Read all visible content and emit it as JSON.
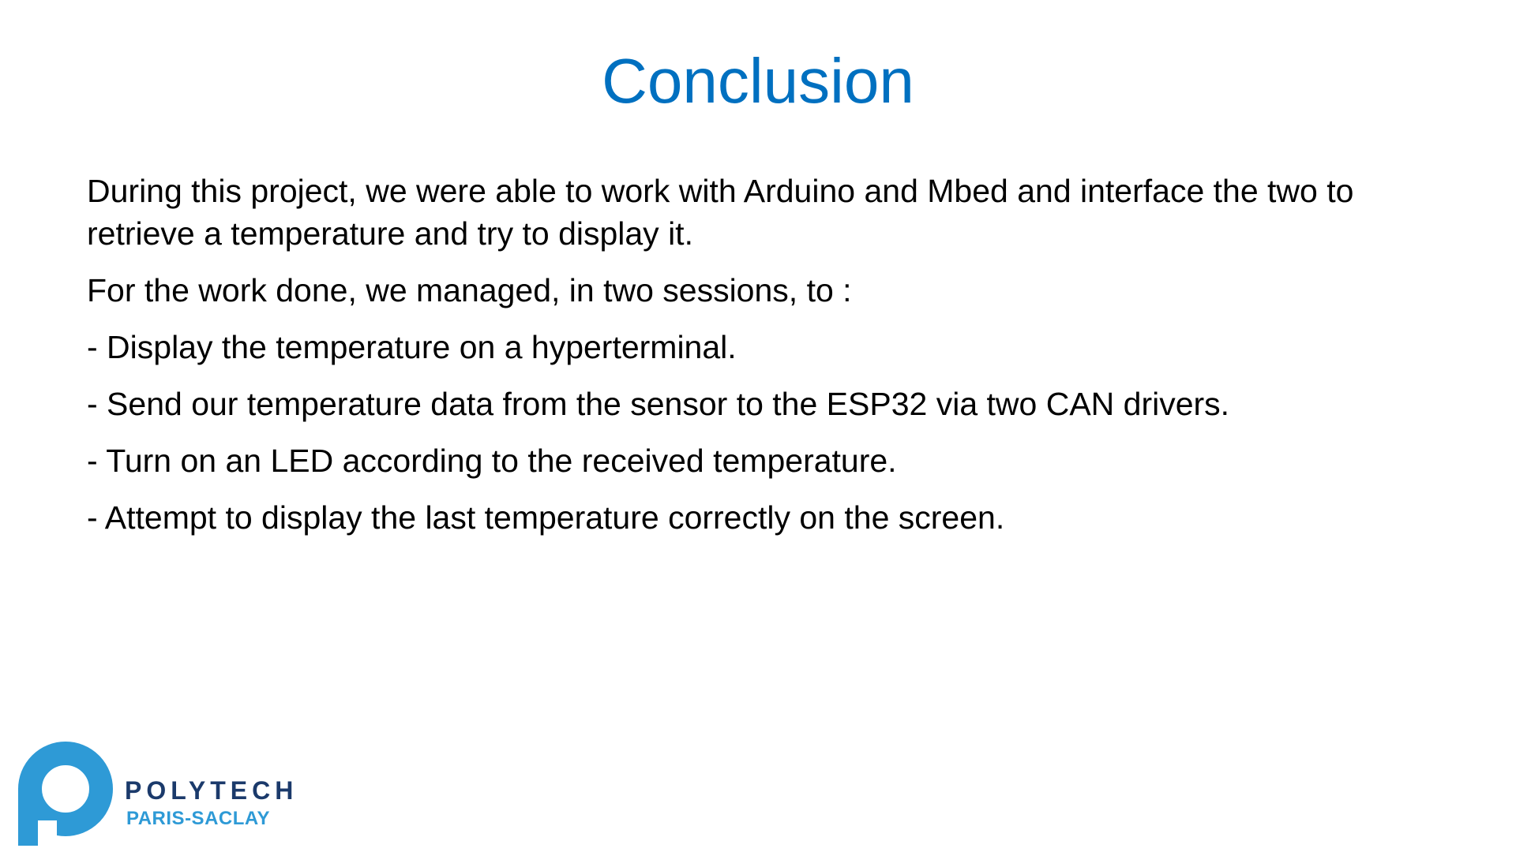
{
  "slide": {
    "title": "Conclusion",
    "paragraphs": [
      "During this project, we were able to work with Arduino and Mbed and interface the two to retrieve a temperature and try to display it.",
      "For the work done, we managed, in two sessions, to :",
      "- Display the temperature on a hyperterminal.",
      "- Send our temperature data from the sensor to the ESP32 via two CAN drivers.",
      "- Turn on an LED according to the received temperature.",
      "- Attempt to display the last temperature correctly on the screen."
    ]
  },
  "logo": {
    "name": "POLYTECH",
    "subtitle": "PARIS-SACLAY",
    "icon": "polytech-logo-icon",
    "colors": {
      "mark": "#2e9ad6",
      "wordmark": "#1b3a6b",
      "subtitle": "#2e9ad6"
    }
  },
  "colors": {
    "title": "#0070c0",
    "text": "#000000",
    "background": "#ffffff"
  }
}
